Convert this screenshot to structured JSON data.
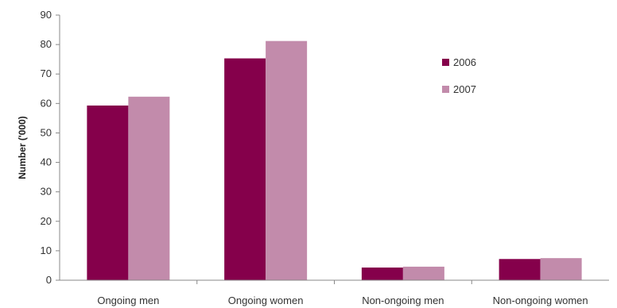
{
  "chart_data": {
    "type": "bar",
    "categories": [
      "Ongoing men",
      "Ongoing women",
      "Non-ongoing men",
      "Non-ongoing women"
    ],
    "series": [
      {
        "name": "2006",
        "values": [
          59.3,
          75.3,
          4.3,
          7.2
        ],
        "color": "#85004b"
      },
      {
        "name": "2007",
        "values": [
          62.3,
          81.2,
          4.6,
          7.5
        ],
        "color": "#c28bab"
      }
    ],
    "title": "",
    "xlabel": "",
    "ylabel": "Number ('000)",
    "ylim": [
      0,
      90
    ],
    "yticks": [
      0,
      10,
      20,
      30,
      40,
      50,
      60,
      70,
      80,
      90
    ],
    "grid": false,
    "legend": "inside-right"
  }
}
